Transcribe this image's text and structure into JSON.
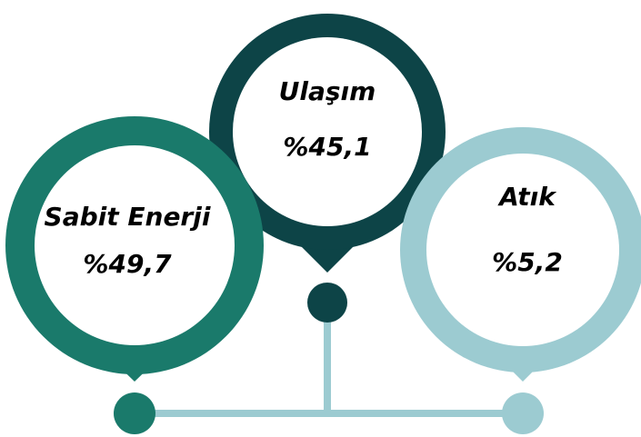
{
  "nodes": [
    {
      "label": "Sabit Enerji",
      "value": "%49,7"
    },
    {
      "label": "Ulaşım",
      "value": "%45,1"
    },
    {
      "label": "Atık",
      "value": "%5,2"
    }
  ]
}
